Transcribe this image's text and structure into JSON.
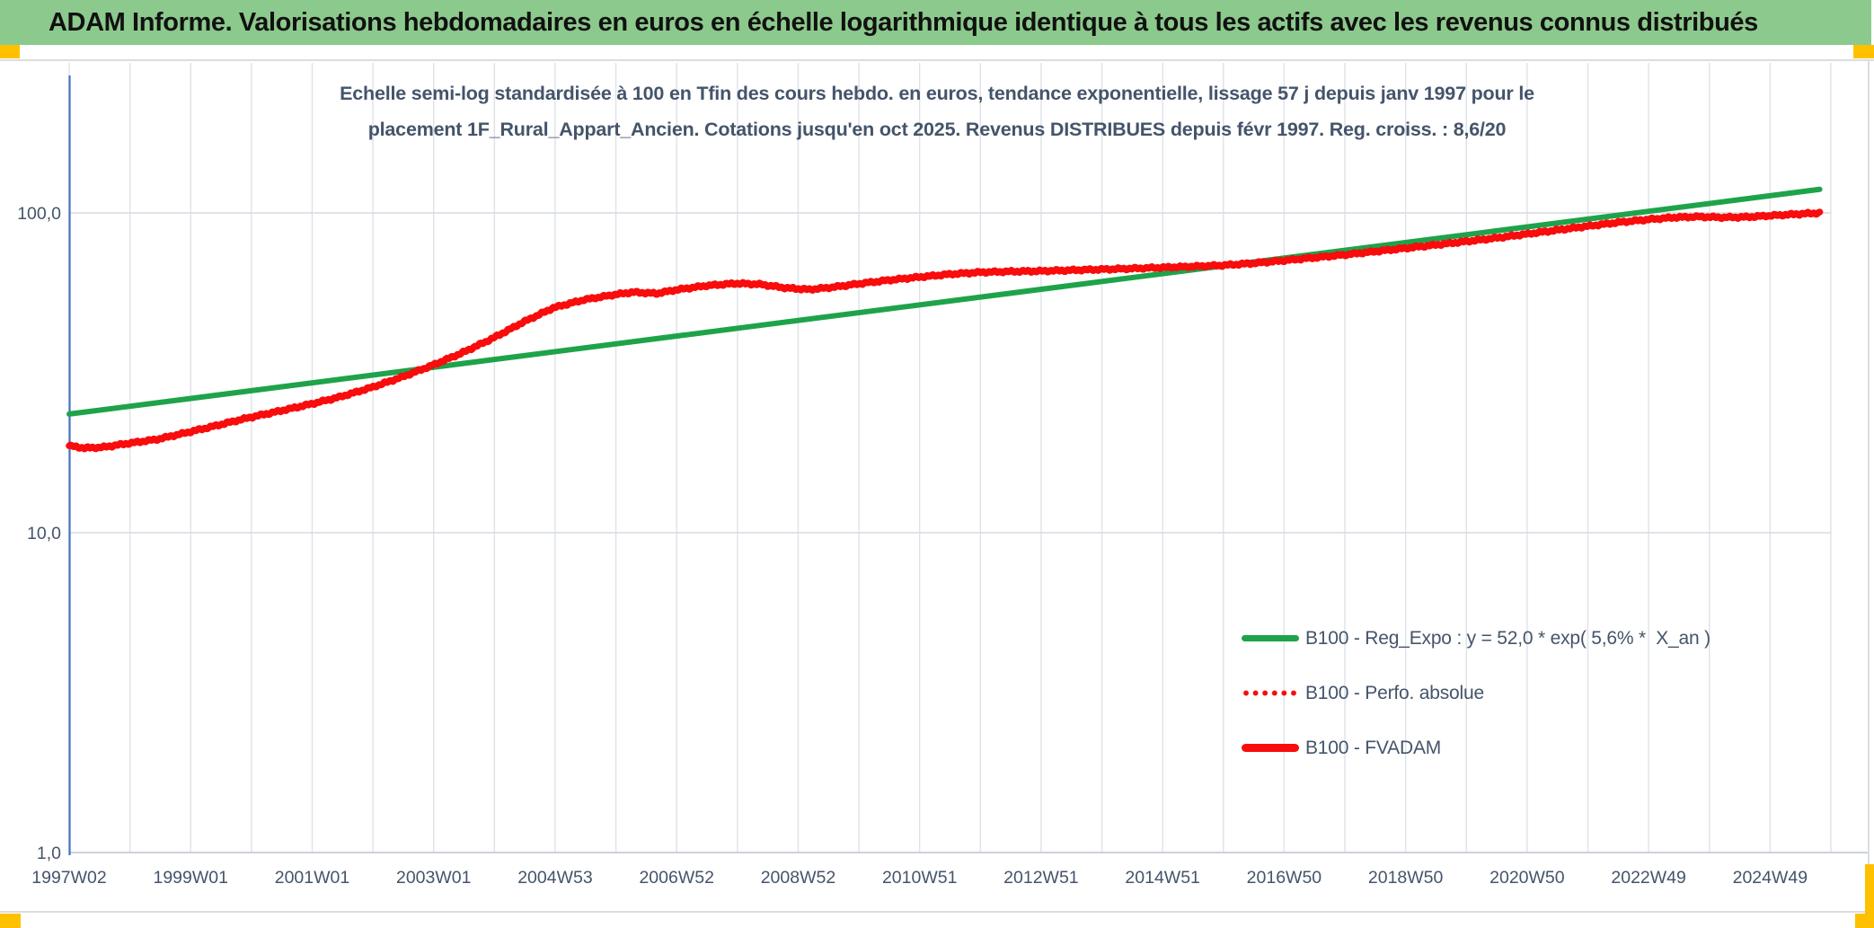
{
  "header": {
    "title": "ADAM Informe. Valorisations hebdomadaires en euros en échelle logarithmique identique à tous les actifs avec les revenus connus distribués"
  },
  "colors": {
    "banner_green": "#8CC98C",
    "accent_gold": "#FFC000",
    "axis_text": "#44546A",
    "y_axis_line": "#4472C4",
    "gridline": "#DEE2E9",
    "series_green": "#1EA34A",
    "series_red": "#F80C0C"
  },
  "chart_data": {
    "type": "line",
    "title_lines": [
      "Echelle semi-log standardisée à 100 en Tfin des cours hebdo. en euros, tendance exponentielle, lissage 57 j depuis janv 1997 pour le",
      "placement 1F_Rural_Appart_Ancien. Cotations jusqu'en oct 2025. Revenus DISTRIBUES depuis févr 1997. Reg. croiss. : 8,6/20"
    ],
    "y_axis": {
      "scale": "log10",
      "ticks": [
        {
          "label": "100,0",
          "value": 100
        },
        {
          "label": "10,0",
          "value": 10
        },
        {
          "label": "1,0",
          "value": 1
        }
      ]
    },
    "x_axis": {
      "start_year": 1997.05,
      "end_year": 2025.79,
      "gridline_every_years": 1,
      "tick_labels": [
        "1997W02",
        "1999W01",
        "2001W01",
        "2003W01",
        "2004W53",
        "2006W52",
        "2008W52",
        "2010W51",
        "2012W51",
        "2014W51",
        "2016W50",
        "2018W50",
        "2020W50",
        "2022W49",
        "2024W49"
      ]
    },
    "legend_position": "right-middle",
    "grid": true,
    "series": [
      {
        "name": "B100 - Reg_Expo : y = 52,0 * exp( 5,6% *  X_an )",
        "style": "solid",
        "color": "#1EA34A",
        "width": 6,
        "formula": {
          "a": 52.0,
          "rate_pct_per_year": 5.6,
          "x0_year": 2011.1
        },
        "points": [
          [
            1997.05,
            23.5
          ],
          [
            2025.79,
            118.5
          ]
        ]
      },
      {
        "name": "B100 - Perfo. absolue",
        "style": "dotted",
        "color": "#F80C0C",
        "width": 6.5,
        "coincident_with": "B100 - FVADAM"
      },
      {
        "name": "B100 - FVADAM",
        "style": "solid",
        "color": "#F80C0C",
        "width": 7.5,
        "points": [
          [
            1997.05,
            18.7
          ],
          [
            1997.3,
            18.4
          ],
          [
            1997.6,
            18.5
          ],
          [
            1998,
            19.0
          ],
          [
            1998.5,
            19.6
          ],
          [
            1999,
            20.6
          ],
          [
            1999.5,
            21.7
          ],
          [
            2000,
            22.9
          ],
          [
            2000.5,
            24.0
          ],
          [
            2001,
            25.2
          ],
          [
            2001.5,
            26.6
          ],
          [
            2002,
            28.4
          ],
          [
            2002.5,
            30.6
          ],
          [
            2003,
            33.3
          ],
          [
            2003.5,
            36.5
          ],
          [
            2004,
            40.5
          ],
          [
            2004.5,
            45.5
          ],
          [
            2005,
            50.5
          ],
          [
            2005.5,
            53.5
          ],
          [
            2006,
            55.5
          ],
          [
            2006.3,
            56.5
          ],
          [
            2006.7,
            56.0
          ],
          [
            2007,
            57.4
          ],
          [
            2007.5,
            59.2
          ],
          [
            2008,
            60.2
          ],
          [
            2008.4,
            59.8
          ],
          [
            2008.8,
            58.3
          ],
          [
            2009.2,
            57.6
          ],
          [
            2009.6,
            58.6
          ],
          [
            2010,
            60.0
          ],
          [
            2010.5,
            61.6
          ],
          [
            2011,
            63.0
          ],
          [
            2011.5,
            64.3
          ],
          [
            2012,
            65.2
          ],
          [
            2012.5,
            65.6
          ],
          [
            2013,
            65.8
          ],
          [
            2013.5,
            66.2
          ],
          [
            2014,
            66.6
          ],
          [
            2014.5,
            67.0
          ],
          [
            2015,
            67.5
          ],
          [
            2015.5,
            68.0
          ],
          [
            2016,
            68.6
          ],
          [
            2016.5,
            69.6
          ],
          [
            2017,
            71.0
          ],
          [
            2017.5,
            72.5
          ],
          [
            2018,
            74.0
          ],
          [
            2018.5,
            75.8
          ],
          [
            2019,
            77.6
          ],
          [
            2019.5,
            79.5
          ],
          [
            2020,
            81.5
          ],
          [
            2020.5,
            83.6
          ],
          [
            2021,
            86.0
          ],
          [
            2021.5,
            88.5
          ],
          [
            2022,
            91.0
          ],
          [
            2022.5,
            93.5
          ],
          [
            2023,
            95.5
          ],
          [
            2023.4,
            96.8
          ],
          [
            2023.8,
            97.3
          ],
          [
            2024.2,
            96.8
          ],
          [
            2024.6,
            97.1
          ],
          [
            2025,
            98.1
          ],
          [
            2025.4,
            99.1
          ],
          [
            2025.79,
            100.0
          ]
        ]
      }
    ]
  }
}
